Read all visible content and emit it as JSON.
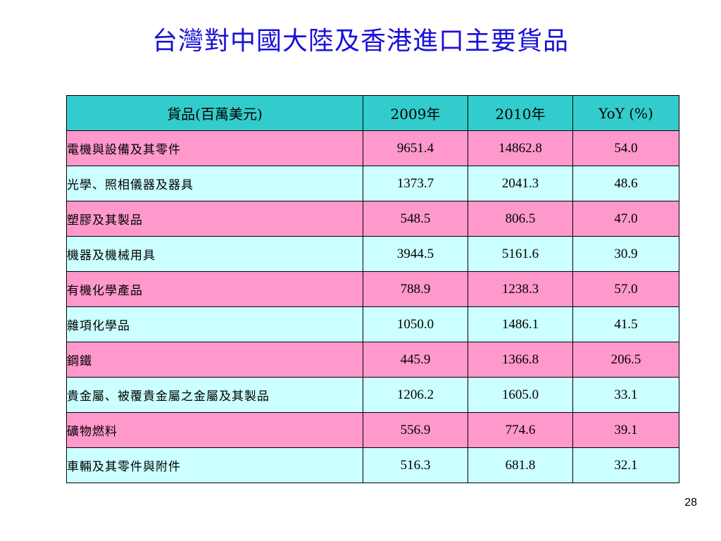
{
  "title": "台灣對中國大陸及香港進口主要貨品",
  "table": {
    "headers": [
      "貨品(百萬美元)",
      "2009年",
      "2010年",
      "YoY (%)"
    ],
    "rows": [
      {
        "item": "電機與設備及其零件",
        "y2009": "9651.4",
        "y2010": "14862.8",
        "yoy": "54.0"
      },
      {
        "item": "光學、照相儀器及器具",
        "y2009": "1373.7",
        "y2010": "2041.3",
        "yoy": "48.6"
      },
      {
        "item": "塑膠及其製品",
        "y2009": "548.5",
        "y2010": "806.5",
        "yoy": "47.0"
      },
      {
        "item": "機器及機械用具",
        "y2009": "3944.5",
        "y2010": "5161.6",
        "yoy": "30.9"
      },
      {
        "item": "有機化學產品",
        "y2009": "788.9",
        "y2010": "1238.3",
        "yoy": "57.0"
      },
      {
        "item": "雜項化學品",
        "y2009": "1050.0",
        "y2010": "1486.1",
        "yoy": "41.5"
      },
      {
        "item": "鋼鐵",
        "y2009": "445.9",
        "y2010": "1366.8",
        "yoy": "206.5"
      },
      {
        "item": "貴金屬、被覆貴金屬之金屬及其製品",
        "y2009": "1206.2",
        "y2010": "1605.0",
        "yoy": "33.1"
      },
      {
        "item": "礦物燃料",
        "y2009": "556.9",
        "y2010": "774.6",
        "yoy": "39.1"
      },
      {
        "item": "車輛及其零件與附件",
        "y2009": "516.3",
        "y2010": "681.8",
        "yoy": "32.1"
      }
    ]
  },
  "page_number": "28",
  "colors": {
    "title": "#1a10d8",
    "header_bg": "#33cccc",
    "row_pink": "#ff99cc",
    "row_cyan": "#ccffff"
  }
}
